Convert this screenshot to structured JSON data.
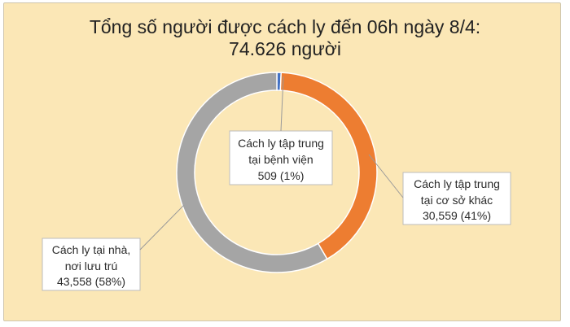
{
  "chart_data": {
    "type": "pie",
    "title": [
      "Tổng số người được cách ly đến 06h ngày 8/4:",
      "74.626 người"
    ],
    "labels": [
      [
        "Cách ly tập trung",
        "tại bệnh viện",
        "509  (1%)"
      ],
      [
        "Cách ly tập trung",
        "tại cơ sở khác",
        "30,559 (41%)"
      ],
      [
        "Cách ly tại nhà,",
        "nơi lưu trú",
        "43,558 (58%)"
      ]
    ],
    "values": [
      509,
      30559,
      43558
    ],
    "colors": [
      "#4472c4",
      "#ed7d31",
      "#a5a5a5"
    ],
    "donut": true
  }
}
